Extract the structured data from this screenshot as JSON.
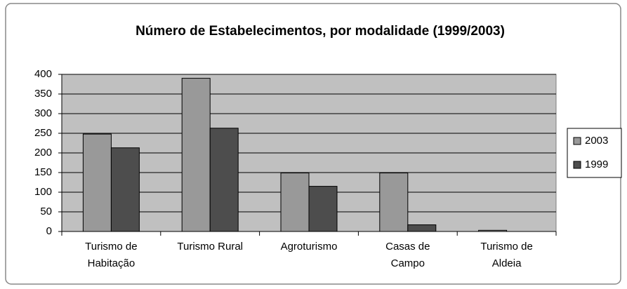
{
  "chart_data": {
    "type": "bar",
    "title": "Número de Estabelecimentos, por modalidade (1999/2003)",
    "categories": [
      "Turismo de Habitação",
      "Turismo Rural",
      "Agroturismo",
      "Casas de Campo",
      "Turismo de Aldeia"
    ],
    "series": [
      {
        "name": "2003",
        "color": "#999999",
        "values": [
          248,
          390,
          149,
          149,
          3
        ]
      },
      {
        "name": "1999",
        "color": "#4d4d4d",
        "values": [
          213,
          263,
          115,
          17,
          0
        ]
      }
    ],
    "ylim": [
      0,
      400
    ],
    "yticks": [
      0,
      50,
      100,
      150,
      200,
      250,
      300,
      350,
      400
    ],
    "grid": true,
    "legend": "right"
  }
}
